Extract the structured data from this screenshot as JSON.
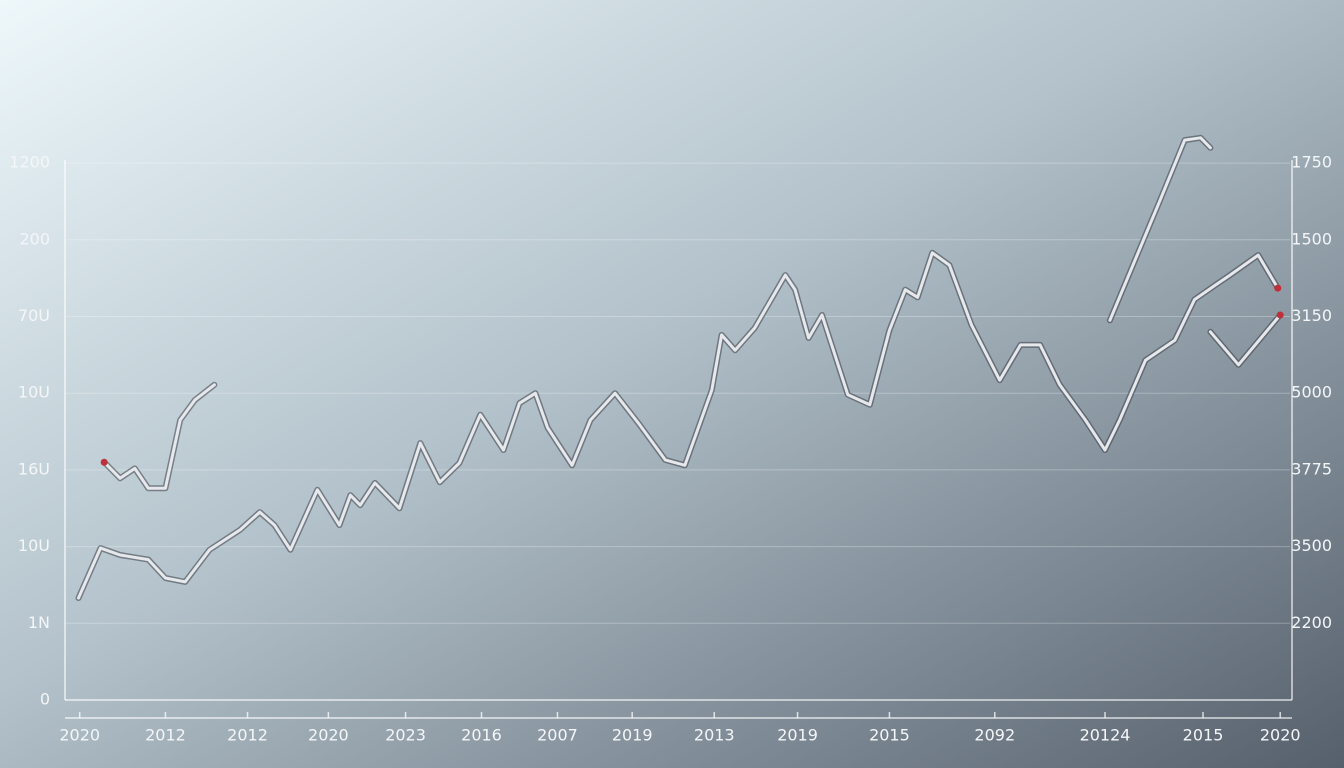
{
  "chart_data": {
    "type": "line",
    "xlim": [
      0,
      100
    ],
    "ylim": [
      0,
      7.6
    ],
    "xticks": [
      1.2,
      8.2,
      14.9,
      21.5,
      27.8,
      34.0,
      40.2,
      46.3,
      53.0,
      59.8,
      67.3,
      75.9,
      84.9,
      92.9,
      99.2
    ],
    "x_labels": [
      "2020",
      "2012",
      "2012",
      "2020",
      "2023",
      "2016",
      "2007",
      "2019",
      "2013",
      "2019",
      "2015",
      "2092",
      "20124",
      "2015",
      "2020"
    ],
    "yticks": [
      0,
      1,
      2,
      3,
      4,
      5,
      6,
      7
    ],
    "y_labels": [
      "0",
      "1N",
      "10U",
      "16U",
      "10U",
      "70U",
      "200",
      "1200"
    ],
    "y2_labels": [
      "2200",
      "3500",
      "3775",
      "5000",
      "3150",
      "1500",
      "1750"
    ],
    "grid": true,
    "color": "#e6e8ec",
    "endpoint_color": "#c0303a",
    "series": [
      {
        "x": [
          1.1,
          2.9,
          4.5,
          6.8,
          8.2,
          9.8,
          11.8,
          14.3,
          15.9,
          17.1,
          18.4,
          20.6,
          22.4,
          23.3,
          24.1,
          25.3,
          27.3,
          29.0,
          30.6,
          32.2,
          33.9,
          35.8,
          37.1,
          38.4,
          39.4,
          41.4,
          42.9,
          44.9,
          46.9,
          49.0,
          50.6,
          52.8,
          53.6,
          54.7,
          56.3,
          58.8,
          59.6,
          60.7,
          61.8,
          63.9,
          65.7,
          67.3,
          68.6,
          69.6,
          70.8,
          72.2,
          74.0,
          76.3,
          78.0,
          79.6,
          81.2,
          83.3,
          84.9,
          86.1,
          88.2,
          90.6,
          92.2,
          93.9,
          95.1,
          97.4,
          99.0
        ],
        "values": [
          1.33,
          1.98,
          1.89,
          1.83,
          1.59,
          1.54,
          1.96,
          2.22,
          2.45,
          2.28,
          1.96,
          2.74,
          2.28,
          2.67,
          2.54,
          2.83,
          2.5,
          3.35,
          2.84,
          3.09,
          3.72,
          3.26,
          3.87,
          4.0,
          3.55,
          3.06,
          3.65,
          4.0,
          3.59,
          3.13,
          3.06,
          4.04,
          4.76,
          4.56,
          4.85,
          5.54,
          5.35,
          4.72,
          5.02,
          3.98,
          3.85,
          4.82,
          5.35,
          5.25,
          5.83,
          5.67,
          4.89,
          4.17,
          4.63,
          4.63,
          4.11,
          3.65,
          3.26,
          3.65,
          4.43,
          4.69,
          5.22,
          5.41,
          5.54,
          5.8,
          5.37
        ]
      },
      {
        "x": [
          3.2,
          4.5,
          5.7,
          6.8,
          8.2,
          9.4,
          10.6,
          12.2
        ],
        "values": [
          3.1,
          2.89,
          3.02,
          2.76,
          2.76,
          3.65,
          3.91,
          4.11
        ]
      },
      {
        "x": [
          85.3,
          89.4,
          91.4,
          92.7,
          93.5
        ],
        "values": [
          4.95,
          6.52,
          7.3,
          7.33,
          7.2
        ]
      },
      {
        "x": [
          93.5,
          95.8,
          99.2
        ],
        "values": [
          4.8,
          4.37,
          5.02
        ]
      }
    ]
  }
}
